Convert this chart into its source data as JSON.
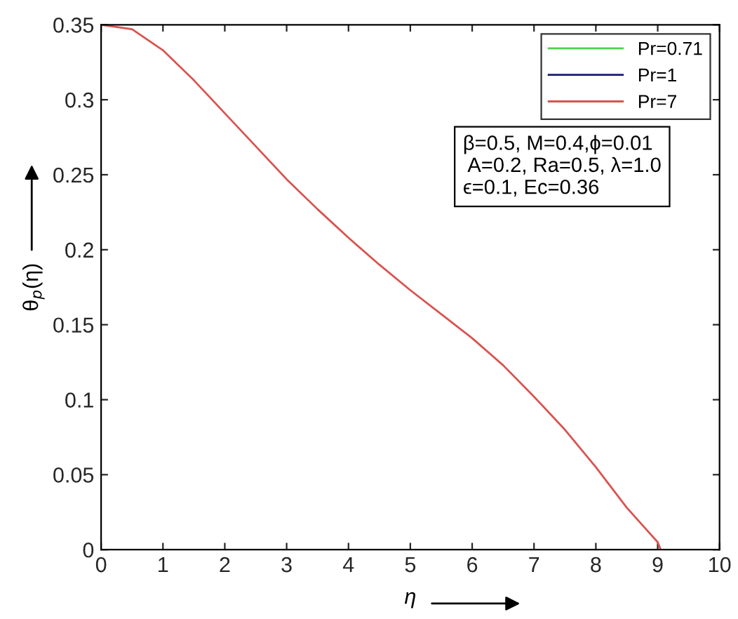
{
  "chart_data": {
    "type": "line",
    "xlabel": "η",
    "ylabel": "θ$_{p}$(η)",
    "x": [
      0,
      0.5,
      1,
      1.5,
      2,
      2.5,
      3,
      3.5,
      4,
      4.5,
      5,
      5.5,
      6,
      6.5,
      7,
      7.5,
      8,
      8.5,
      9,
      9.05
    ],
    "series": [
      {
        "name": "Pr=0.71",
        "color": "#4dd24d",
        "values": [
          null,
          null,
          null,
          null,
          null,
          null,
          null,
          null,
          null,
          null,
          null,
          null,
          null,
          null,
          null,
          null,
          null,
          null,
          null,
          null
        ]
      },
      {
        "name": "Pr=1",
        "color": "#1a1a6e",
        "values": [
          null,
          null,
          null,
          null,
          null,
          null,
          null,
          null,
          null,
          null,
          null,
          null,
          null,
          null,
          null,
          null,
          null,
          null,
          null,
          null
        ]
      },
      {
        "name": "Pr=7",
        "color": "#d9534f",
        "values": [
          0.35,
          0.347,
          0.333,
          0.313,
          0.291,
          0.269,
          0.247,
          0.227,
          0.208,
          0.19,
          0.173,
          0.157,
          0.141,
          0.123,
          0.102,
          0.08,
          0.055,
          0.028,
          0.005,
          0
        ]
      }
    ],
    "annotations": [
      "β=0.5, M=0.4,ϕ=0.01",
      " A=0.2, Ra=0.5, λ=1.0",
      "ϵ=0.1, Ec=0.36"
    ],
    "xlim": [
      0,
      10
    ],
    "xticks": [
      0,
      1,
      2,
      3,
      4,
      5,
      6,
      7,
      8,
      9,
      10
    ],
    "ylim": [
      0,
      0.35
    ],
    "yticks": [
      0,
      0.05,
      0.1,
      0.15,
      0.2,
      0.25,
      0.3,
      0.35
    ],
    "legend": "top right",
    "grid": false,
    "marker": "none",
    "line_style": "solid"
  }
}
